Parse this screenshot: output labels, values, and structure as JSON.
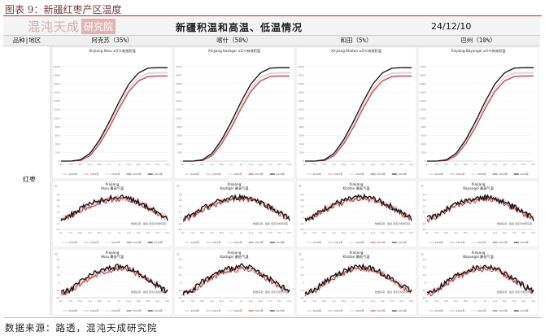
{
  "figure_title": "图表 9：新疆红枣产区温度",
  "logo": {
    "mark": "混沌天成",
    "box": "研究院"
  },
  "main_title": "新疆积温和高温、低温情况",
  "date": "24/12/10",
  "header_labels": {
    "variety_region": "品种|地区"
  },
  "row_label": "红枣",
  "columns": [
    {
      "label": "阿克苏（35%）",
      "region": "Aksu",
      "gdd_title": "Xinjiang Aksu ≥5℃有效积温"
    },
    {
      "label": "喀什（50%）",
      "region": "Kashgar",
      "gdd_title": "Xinjiang  Kashgar  ≥5℃有效积温"
    },
    {
      "label": "和田（5%）",
      "region": "Khotan",
      "gdd_title": "Xinjiang  Khotan  ≥5℃有效积温"
    },
    {
      "label": "巴州（10%）",
      "region": "Bayangol",
      "gdd_title": "Xinjiang  Bayangol  ≥5℃有效积温"
    }
  ],
  "temp_titles": {
    "high": "最高气温",
    "low": "最低气温"
  },
  "source_note": "数据来源：路透，混沌天成研究院",
  "panel_note": "数据来源：路透  混沌天成研究院",
  "temp_unit": "℃",
  "colors": {
    "y2020": "#c9c9c9",
    "y2021": "#e6a3a3",
    "y2022": "#f0c9c9",
    "y2023": "#b83a3a",
    "y2024": "#111111",
    "accent": "#9a2b2b"
  },
  "chart_data": [
    {
      "type": "line",
      "name": "Accumulated temperature ≥5℃",
      "ylim": [
        0,
        2400
      ],
      "yticks": [
        0,
        200,
        400,
        600,
        800,
        1000,
        1200,
        1400,
        1600,
        1800,
        2000,
        2200
      ],
      "x": [
        "Jan",
        "Feb",
        "Mar",
        "Apr",
        "May",
        "Jun",
        "Jul",
        "Aug",
        "Sep",
        "Oct",
        "Nov",
        "Dec"
      ],
      "series": [
        {
          "name": "2020年",
          "values": [
            0,
            0,
            20,
            150,
            450,
            850,
            1300,
            1700,
            1950,
            2050,
            2060,
            2060
          ]
        },
        {
          "name": "2021年",
          "values": [
            0,
            0,
            15,
            130,
            420,
            800,
            1250,
            1640,
            1880,
            1980,
            1990,
            1990
          ]
        },
        {
          "name": "2022年",
          "values": [
            0,
            0,
            25,
            160,
            470,
            870,
            1310,
            1690,
            1940,
            2030,
            2040,
            2040
          ]
        },
        {
          "name": "2023年",
          "values": [
            0,
            0,
            10,
            120,
            400,
            780,
            1220,
            1610,
            1860,
            1960,
            1970,
            1970
          ]
        },
        {
          "name": "2024年",
          "values": [
            0,
            0,
            30,
            180,
            500,
            920,
            1380,
            1790,
            2050,
            2160,
            2170,
            2170
          ]
        }
      ]
    },
    {
      "type": "line",
      "name": "Daily maximum temperature",
      "ylim": [
        -20,
        45
      ],
      "yticks": [
        -20,
        -10,
        0,
        10,
        20,
        30,
        40
      ],
      "x": [
        "Jan",
        "Feb",
        "Mar",
        "Apr",
        "May",
        "Jun",
        "Jul",
        "Aug",
        "Sep",
        "Oct",
        "Nov",
        "Dec"
      ],
      "series": [
        {
          "name": "2020年",
          "values": [
            -2,
            4,
            14,
            22,
            27,
            31,
            33,
            32,
            26,
            18,
            8,
            0
          ]
        },
        {
          "name": "2021年",
          "values": [
            -3,
            3,
            13,
            21,
            28,
            32,
            34,
            31,
            25,
            17,
            7,
            -1
          ]
        },
        {
          "name": "2022年",
          "values": [
            -1,
            5,
            15,
            23,
            28,
            32,
            33,
            33,
            27,
            19,
            9,
            1
          ]
        },
        {
          "name": "2023年",
          "values": [
            -4,
            2,
            12,
            20,
            26,
            30,
            32,
            31,
            24,
            16,
            6,
            -2
          ]
        },
        {
          "name": "2024年",
          "values": [
            -2,
            4,
            15,
            24,
            29,
            33,
            35,
            33,
            26,
            18,
            8,
            -1
          ]
        }
      ]
    },
    {
      "type": "line",
      "name": "Daily minimum temperature",
      "ylim": [
        -20,
        30
      ],
      "yticks": [
        -20,
        -10,
        0,
        10,
        20,
        30
      ],
      "x": [
        "Jan",
        "Feb",
        "Mar",
        "Apr",
        "May",
        "Jun",
        "Jul",
        "Aug",
        "Sep",
        "Oct",
        "Nov",
        "Dec"
      ],
      "series": [
        {
          "name": "2020年",
          "values": [
            -14,
            -9,
            0,
            8,
            13,
            17,
            19,
            18,
            12,
            4,
            -4,
            -11
          ]
        },
        {
          "name": "2021年",
          "values": [
            -15,
            -10,
            -1,
            7,
            13,
            18,
            20,
            17,
            11,
            3,
            -5,
            -12
          ]
        },
        {
          "name": "2022年",
          "values": [
            -13,
            -8,
            1,
            9,
            14,
            18,
            19,
            18,
            13,
            5,
            -3,
            -10
          ]
        },
        {
          "name": "2023年",
          "values": [
            -16,
            -11,
            -2,
            6,
            12,
            16,
            18,
            17,
            10,
            2,
            -6,
            -13
          ]
        },
        {
          "name": "2024年",
          "values": [
            -14,
            -9,
            1,
            9,
            15,
            19,
            21,
            19,
            12,
            4,
            -4,
            -12
          ]
        }
      ]
    }
  ]
}
